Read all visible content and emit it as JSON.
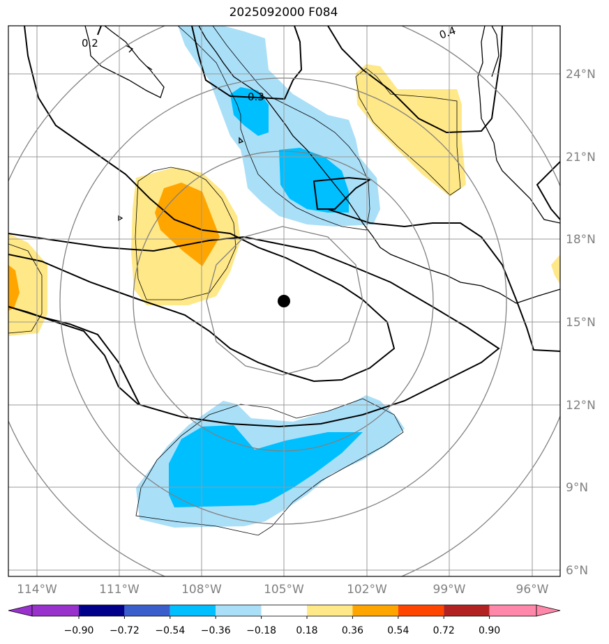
{
  "title": "2025092000 F084",
  "map": {
    "latitude_labels": [
      "24°N",
      "21°N",
      "18°N",
      "15°N",
      "12°N",
      "9°N",
      "6°N"
    ],
    "longitude_labels": [
      "114°W",
      "111°W",
      "108°W",
      "105°W",
      "102°W",
      "99°W",
      "96°W"
    ],
    "center_marker": {
      "lon": -105,
      "lat": 15.7
    },
    "contour_labels": [
      "0.2",
      "0.3",
      "0.4"
    ],
    "fill_colors": {
      "light_blue": "#aadff8",
      "blue": "#00bfff",
      "light_yellow": "#ffe887",
      "orange": "#ffa500"
    }
  },
  "colorbar": {
    "ticks": [
      "−0.90",
      "−0.72",
      "−0.54",
      "−0.36",
      "−0.18",
      "0.18",
      "0.36",
      "0.54",
      "0.72",
      "0.90"
    ],
    "colors": [
      "#9932cc",
      "#00008b",
      "#3a5fcd",
      "#00bfff",
      "#aadff8",
      "#ffffff",
      "#ffe887",
      "#ffa500",
      "#ff4500",
      "#b22222",
      "#ff88aa"
    ]
  }
}
